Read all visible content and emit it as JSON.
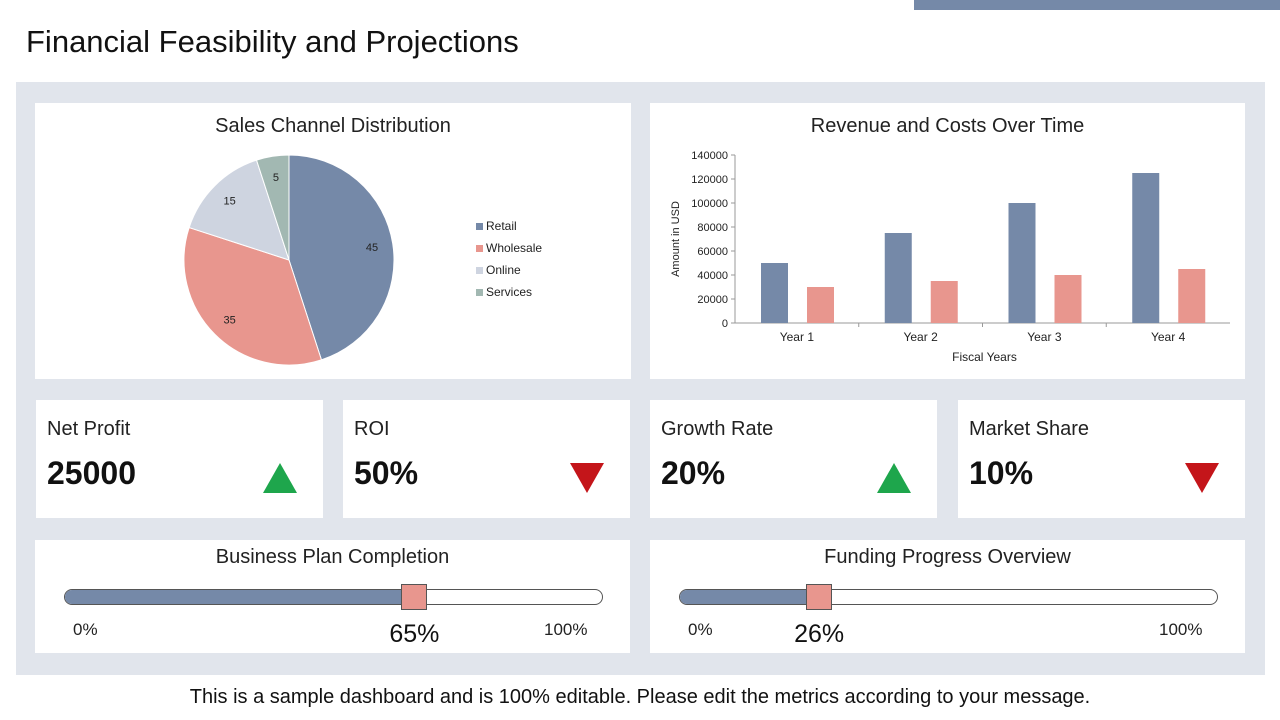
{
  "page": {
    "title": "Financial Feasibility and Projections",
    "footer": "This is a sample dashboard and is 100% editable. Please edit the metrics according to your message."
  },
  "colors": {
    "accent": "#7589a8",
    "frame": "#e1e5ec",
    "retail": "#7589a8",
    "wholesale": "#e8968e",
    "online": "#ced4e0",
    "services": "#a2b8b2",
    "costs": "#e8968e",
    "up": "#1ea64c",
    "down": "#c4151a",
    "thumb": "#e8968e"
  },
  "chart_data": [
    {
      "type": "pie",
      "title": "Sales Channel Distribution",
      "categories": [
        "Retail",
        "Wholesale",
        "Online",
        "Services"
      ],
      "values": [
        45,
        35,
        15,
        5
      ],
      "data_labels": [
        "45",
        "35",
        "15",
        "5"
      ],
      "legend_position": "right"
    },
    {
      "type": "bar",
      "title": "Revenue and Costs Over Time",
      "categories": [
        "Year 1",
        "Year 2",
        "Year 3",
        "Year 4"
      ],
      "series": [
        {
          "values": [
            50000,
            75000,
            100000,
            125000
          ]
        },
        {
          "values": [
            30000,
            35000,
            40000,
            45000
          ]
        }
      ],
      "xlabel": "Fiscal Years",
      "ylabel": "Amount in USD",
      "ylim": [
        0,
        140000
      ],
      "yticks": [
        "0",
        "20000",
        "40000",
        "60000",
        "80000",
        "100000",
        "120000",
        "140000"
      ],
      "grid": false,
      "legend": false
    }
  ],
  "kpis": [
    {
      "label": "Net Profit",
      "value": "25000",
      "trend": "up",
      "icon": "triangle-up-icon"
    },
    {
      "label": "ROI",
      "value": "50%",
      "trend": "down",
      "icon": "triangle-down-icon"
    },
    {
      "label": "Growth Rate",
      "value": "20%",
      "trend": "up",
      "icon": "triangle-up-icon"
    },
    {
      "label": "Market Share",
      "value": "10%",
      "trend": "down",
      "icon": "triangle-down-icon"
    }
  ],
  "progress": [
    {
      "title": "Business Plan Completion",
      "percent": 65,
      "percent_label": "65%",
      "min_label": "0%",
      "max_label": "100%"
    },
    {
      "title": "Funding Progress Overview",
      "percent": 26,
      "percent_label": "26%",
      "min_label": "0%",
      "max_label": "100%"
    }
  ]
}
